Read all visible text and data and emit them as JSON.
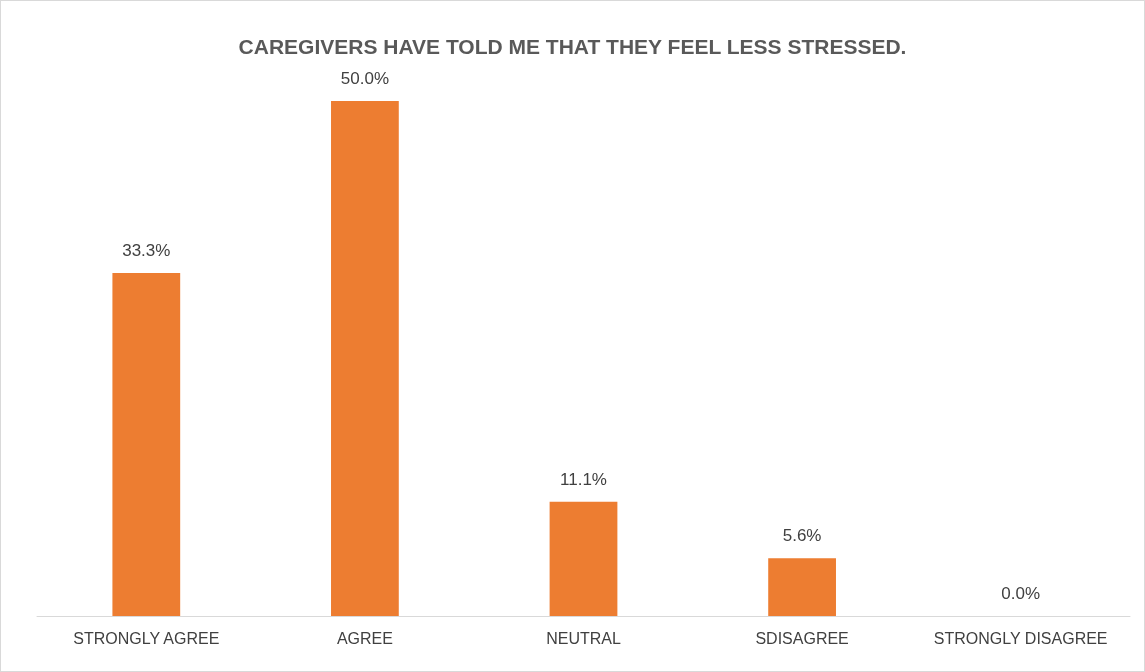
{
  "chart_data": {
    "type": "bar",
    "title": "CAREGIVERS HAVE TOLD ME THAT THEY FEEL LESS STRESSED.",
    "categories": [
      "STRONGLY AGREE",
      "AGREE",
      "NEUTRAL",
      "SDISAGREE",
      "STRONGLY DISAGREE"
    ],
    "values": [
      33.3,
      50.0,
      11.1,
      5.6,
      0.0
    ],
    "value_labels": [
      "33.3%",
      "50.0%",
      "11.1%",
      "5.6%",
      "0.0%"
    ],
    "color": "#ed7d31",
    "grid": false
  }
}
